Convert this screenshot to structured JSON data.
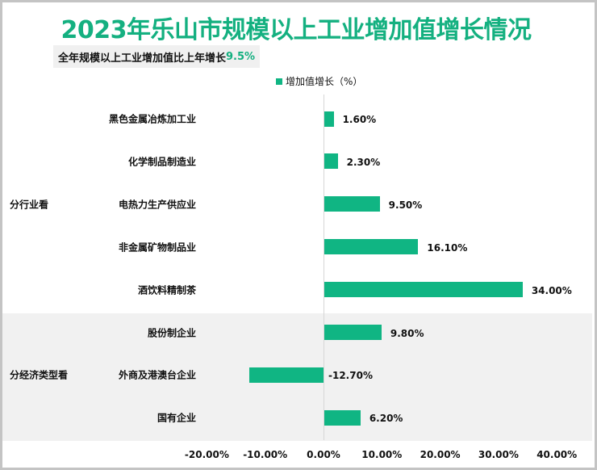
{
  "title": "2023年乐山市规模以上工业增加值增长情况",
  "subtitle": {
    "text": "全年规模以上工业增加值比上年增长",
    "value": "9.5%"
  },
  "legend": {
    "label": "增加值增长（%）"
  },
  "colors": {
    "bar": "#10b583",
    "title": "#14b080",
    "highlight": "#14b080"
  },
  "groups": [
    {
      "label": "分行业看"
    },
    {
      "label": "分经济类型看"
    }
  ],
  "ticks": [
    "-20.00%",
    "-10.00%",
    "0.00%",
    "10.00%",
    "20.00%",
    "30.00%",
    "40.00%"
  ],
  "chart_data": {
    "type": "bar",
    "orientation": "horizontal",
    "title": "2023年乐山市规模以上工业增加值增长情况",
    "subtitle": "全年规模以上工业增加值比上年增长9.5%",
    "xlabel": "",
    "ylabel": "",
    "xlim": [
      -20,
      40
    ],
    "legend": {
      "entries": [
        "增加值增长（%）"
      ],
      "position": "top"
    },
    "grid": false,
    "groups": [
      {
        "name": "分行业看",
        "categories": [
          "黑色金属冶炼加工业",
          "化学制品制造业",
          "电热力生产供应业",
          "非金属矿物制品业",
          "酒饮料精制茶"
        ]
      },
      {
        "name": "分经济类型看",
        "categories": [
          "股份制企业",
          "外商及港澳台企业",
          "国有企业"
        ]
      }
    ],
    "categories": [
      "黑色金属冶炼加工业",
      "化学制品制造业",
      "电热力生产供应业",
      "非金属矿物制品业",
      "酒饮料精制茶",
      "股份制企业",
      "外商及港澳台企业",
      "国有企业"
    ],
    "series": [
      {
        "name": "增加值增长（%）",
        "values": [
          1.6,
          2.3,
          9.5,
          16.1,
          34.0,
          9.8,
          -12.7,
          6.2
        ]
      }
    ],
    "data_labels": [
      "1.60%",
      "2.30%",
      "9.50%",
      "16.10%",
      "34.00%",
      "9.80%",
      "-12.70%",
      "6.20%"
    ],
    "tick_labels": [
      "-20.00%",
      "-10.00%",
      "0.00%",
      "10.00%",
      "20.00%",
      "30.00%",
      "40.00%"
    ]
  }
}
